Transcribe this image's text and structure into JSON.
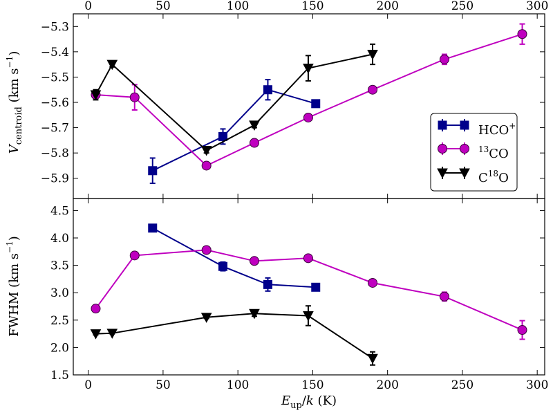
{
  "chart_data": [
    {
      "type": "line",
      "panel": "top",
      "title": "",
      "xlabel": "",
      "ylabel": {
        "main": "V",
        "sub": "centroid",
        "units": " (km s",
        "sup": "−1",
        "close": ")"
      },
      "xlim": [
        -10,
        305
      ],
      "ylim": [
        -5.98,
        -5.25
      ],
      "xticks": [
        0,
        50,
        100,
        150,
        200,
        250,
        300
      ],
      "xtick_labels": [
        "0",
        "50",
        "100",
        "150",
        "200",
        "250",
        "300"
      ],
      "yticks": [
        -5.9,
        -5.8,
        -5.7,
        -5.6,
        -5.5,
        -5.4,
        -5.3
      ],
      "ytick_labels": [
        "−5.9",
        "−5.8",
        "−5.7",
        "−5.6",
        "−5.5",
        "−5.4",
        "−5.3"
      ],
      "legend_position": "right",
      "series": [
        {
          "name": "HCO+",
          "label_main": "HCO",
          "label_sup": "+",
          "label_pre": "",
          "color": "#00008b",
          "marker": "square",
          "x": [
            43,
            90,
            120,
            152
          ],
          "y": [
            -5.87,
            -5.735,
            -5.55,
            -5.605
          ],
          "err": [
            0.05,
            0.03,
            0.04,
            0.01
          ]
        },
        {
          "name": "13CO",
          "label_main": "CO",
          "label_sup": "",
          "label_pre": "13",
          "color": "#bf00bf",
          "marker": "circle",
          "x": [
            5,
            31,
            79,
            111,
            147,
            190,
            238,
            290
          ],
          "y": [
            -5.57,
            -5.58,
            -5.85,
            -5.76,
            -5.66,
            -5.55,
            -5.43,
            -5.33
          ],
          "err": [
            0.01,
            0.05,
            0.01,
            0.01,
            0.01,
            0.01,
            0.02,
            0.04
          ]
        },
        {
          "name": "C18O",
          "label_main": "C",
          "label_sup": "",
          "label_pre": "",
          "label_mid": "18",
          "label_end": "O",
          "color": "#000000",
          "marker": "triangle-down",
          "x": [
            5,
            16,
            79,
            111,
            147,
            190
          ],
          "y": [
            -5.57,
            -5.45,
            -5.79,
            -5.69,
            -5.465,
            -5.41
          ],
          "err": [
            0.02,
            0.01,
            0.01,
            0.01,
            0.05,
            0.04
          ]
        }
      ]
    },
    {
      "type": "line",
      "panel": "bottom",
      "title": "",
      "xlabel": {
        "main": "E",
        "sub": "up",
        "rest": "/",
        "italic2": "k",
        "units": " (K)"
      },
      "ylabel": {
        "main": "FWHM",
        "units": " (km s",
        "sup": "−1",
        "close": ")"
      },
      "xlim": [
        -10,
        305
      ],
      "ylim": [
        1.5,
        4.72
      ],
      "xticks": [
        0,
        50,
        100,
        150,
        200,
        250,
        300
      ],
      "xtick_labels": [
        "0",
        "50",
        "100",
        "150",
        "200",
        "250",
        "300"
      ],
      "yticks": [
        1.5,
        2.0,
        2.5,
        3.0,
        3.5,
        4.0,
        4.5
      ],
      "ytick_labels": [
        "1.5",
        "2.0",
        "2.5",
        "3.0",
        "3.5",
        "4.0",
        "4.5"
      ],
      "series": [
        {
          "name": "HCO+",
          "color": "#00008b",
          "marker": "square",
          "x": [
            43,
            90,
            120,
            152
          ],
          "y": [
            4.18,
            3.48,
            3.15,
            3.1
          ],
          "err": [
            0.02,
            0.08,
            0.12,
            0.02
          ]
        },
        {
          "name": "13CO",
          "color": "#bf00bf",
          "marker": "circle",
          "x": [
            5,
            31,
            79,
            111,
            147,
            190,
            238,
            290
          ],
          "y": [
            2.71,
            3.68,
            3.78,
            3.58,
            3.63,
            3.18,
            2.93,
            2.32
          ],
          "err": [
            0.01,
            0.01,
            0.01,
            0.01,
            0.01,
            0.01,
            0.08,
            0.17
          ]
        },
        {
          "name": "C18O",
          "color": "#000000",
          "marker": "triangle-down",
          "x": [
            5,
            16,
            79,
            111,
            147,
            190
          ],
          "y": [
            2.25,
            2.26,
            2.55,
            2.62,
            2.58,
            1.8
          ],
          "err": [
            0.02,
            0.01,
            0.02,
            0.05,
            0.18,
            0.12
          ]
        }
      ]
    }
  ]
}
